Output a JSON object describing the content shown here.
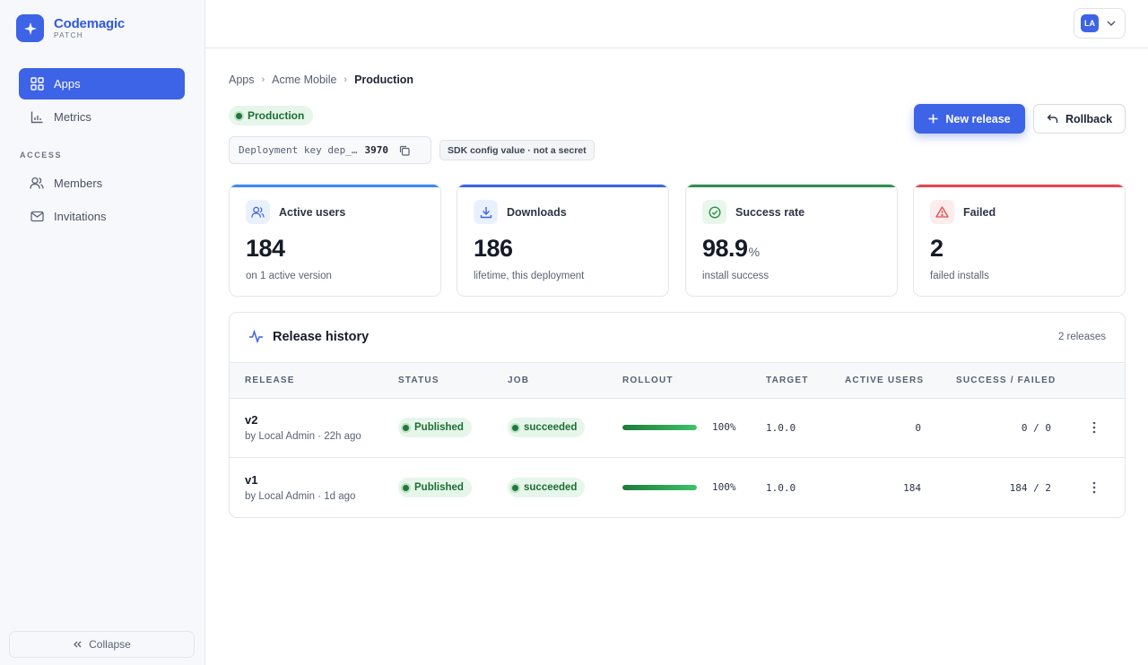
{
  "brand": {
    "name": "Codemagic",
    "sub": "PATCH",
    "logo_icon": "sparkle-icon",
    "color": "#3d63e6"
  },
  "sidebar": {
    "items": [
      {
        "label": "Apps",
        "icon": "grid-icon",
        "active": true
      },
      {
        "label": "Metrics",
        "icon": "bar-chart-icon",
        "active": false
      }
    ],
    "section_label": "ACCESS",
    "access_items": [
      {
        "label": "Members",
        "icon": "users-icon"
      },
      {
        "label": "Invitations",
        "icon": "mail-icon"
      }
    ],
    "collapse_label": "Collapse"
  },
  "topbar": {
    "avatar_initials": "LA"
  },
  "breadcrumb": {
    "items": [
      "Apps",
      "Acme Mobile"
    ],
    "current": "Production",
    "separator": "›"
  },
  "environment": {
    "label": "Production",
    "status_color": "#1f7a3a"
  },
  "deployment_key": {
    "label": "Deployment key dep_…",
    "suffix": "3970"
  },
  "sdk_note": "SDK config value · not a secret",
  "actions": {
    "new_release": "New release",
    "rollback": "Rollback"
  },
  "stats": [
    {
      "label": "Active users",
      "value": "184",
      "unit": "",
      "sub": "on 1 active version",
      "icon": "users-icon",
      "accent": "#3d8bf2"
    },
    {
      "label": "Downloads",
      "value": "186",
      "unit": "",
      "sub": "lifetime, this deployment",
      "icon": "download-icon",
      "accent": "#3d63e6"
    },
    {
      "label": "Success rate",
      "value": "98.9",
      "unit": "%",
      "sub": "install success",
      "icon": "check-circle-icon",
      "accent": "#2f8f4e"
    },
    {
      "label": "Failed",
      "value": "2",
      "unit": "",
      "sub": "failed installs",
      "icon": "warning-icon",
      "accent": "#e5484d"
    }
  ],
  "history": {
    "title": "Release history",
    "count": "2 releases",
    "columns": [
      "RELEASE",
      "STATUS",
      "JOB",
      "ROLLOUT",
      "TARGET",
      "ACTIVE USERS",
      "SUCCESS / FAILED"
    ],
    "rows": [
      {
        "name": "v2",
        "by": "by Local Admin · 22h ago",
        "status": "Published",
        "job": "succeeded",
        "rollout": 1.0,
        "rollout_label": "100%",
        "target": "1.0.0",
        "active_users": "0",
        "success_failed": "0 / 0"
      },
      {
        "name": "v1",
        "by": "by Local Admin · 1d ago",
        "status": "Published",
        "job": "succeeded",
        "rollout": 1.0,
        "rollout_label": "100%",
        "target": "1.0.0",
        "active_users": "184",
        "success_failed": "184 / 2"
      }
    ]
  }
}
